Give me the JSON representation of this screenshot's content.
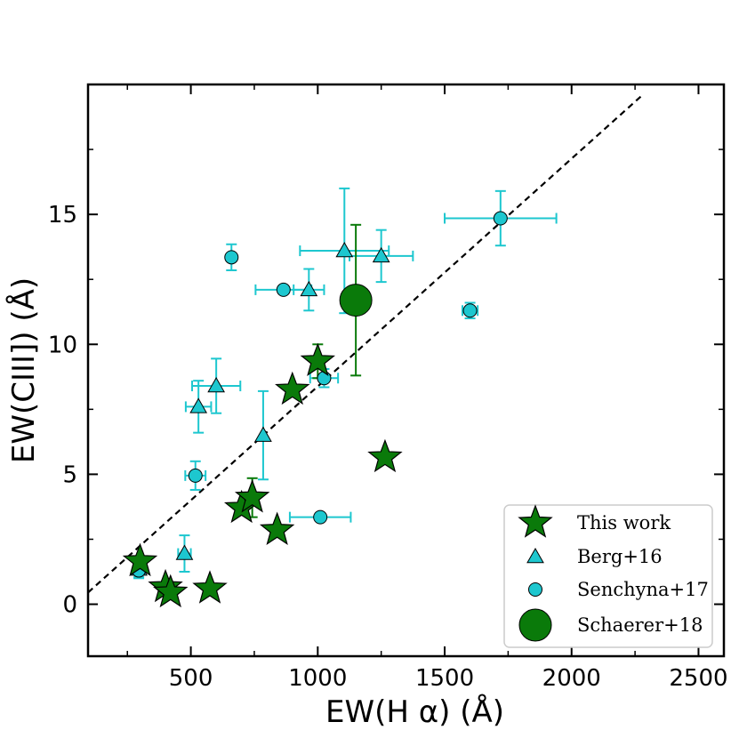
{
  "chart_data": {
    "type": "scatter",
    "title": "",
    "xlabel": "EW(H α) (Å)",
    "ylabel": "EW(CIII]) (Å)",
    "xlim": [
      95,
      2600
    ],
    "ylim": [
      -2,
      20
    ],
    "xticks": [
      500,
      1000,
      1500,
      2000,
      2500
    ],
    "yticks": [
      0,
      5,
      10,
      15
    ],
    "xtick_labels": [
      "500",
      "1000",
      "1500",
      "2000",
      "2500"
    ],
    "ytick_labels": [
      "0",
      "5",
      "10",
      "15"
    ],
    "reference_line": {
      "style": "dashed",
      "color": "#000000",
      "from": [
        95,
        0.45
      ],
      "to": [
        2280,
        19.6
      ]
    },
    "legend_position": "bottom-right",
    "series": [
      {
        "name": "This work",
        "marker": "star",
        "color": "#0a7a0a",
        "points": [
          {
            "x": 300,
            "y": 1.65
          },
          {
            "x": 400,
            "y": 0.65
          },
          {
            "x": 420,
            "y": 0.45
          },
          {
            "x": 575,
            "y": 0.6
          },
          {
            "x": 700,
            "y": 3.7
          },
          {
            "x": 742,
            "y": 4.1,
            "yerr": 0.75
          },
          {
            "x": 840,
            "y": 2.85
          },
          {
            "x": 900,
            "y": 8.25
          },
          {
            "x": 1000,
            "y": 9.35,
            "yerr": 0.65
          },
          {
            "x": 1265,
            "y": 5.65
          }
        ]
      },
      {
        "name": "Berg+16",
        "marker": "triangle",
        "color": "#1dc7cf",
        "errcolor": "#1dc7cf",
        "points": [
          {
            "x": 295,
            "y": 1.35,
            "yerr": 0.3,
            "xerr": 20
          },
          {
            "x": 475,
            "y": 1.95,
            "yerr": 0.7,
            "xerr": 25
          },
          {
            "x": 530,
            "y": 7.6,
            "yerr": 1.0,
            "xerr": 50
          },
          {
            "x": 600,
            "y": 8.4,
            "yerr": 1.05,
            "xerr": 95
          },
          {
            "x": 785,
            "y": 6.5,
            "yerr": 1.7
          },
          {
            "x": 965,
            "y": 12.1,
            "yerr": 0.8,
            "xerr": 60
          },
          {
            "x": 1105,
            "y": 13.6,
            "yerr": 2.4,
            "xerr": 175
          },
          {
            "x": 1250,
            "y": 13.4,
            "yerr": 1.0,
            "xerr": 125
          }
        ]
      },
      {
        "name": "Senchyna+17",
        "marker": "circle",
        "color": "#1dc7cf",
        "errcolor": "#1dc7cf",
        "points": [
          {
            "x": 295,
            "y": 1.3,
            "yerr": 0.3
          },
          {
            "x": 518,
            "y": 4.95,
            "yerr": 0.55,
            "xerr": 40
          },
          {
            "x": 660,
            "y": 13.35,
            "yerr": 0.5
          },
          {
            "x": 865,
            "y": 12.1,
            "xerr": 110
          },
          {
            "x": 1010,
            "y": 3.35,
            "xerr": 120
          },
          {
            "x": 1025,
            "y": 8.7,
            "yerr": 0.35,
            "xerr": 55
          },
          {
            "x": 1600,
            "y": 11.3,
            "yerr": 0.3,
            "xerr": 30
          },
          {
            "x": 1720,
            "y": 14.85,
            "yerr": 1.05,
            "xerr": 220
          }
        ]
      },
      {
        "name": "Schaerer+18",
        "marker": "circle-large",
        "color": "#0a7a0a",
        "errcolor": "#0a7a0a",
        "points": [
          {
            "x": 1150,
            "y": 11.7,
            "yerr": 2.9
          }
        ]
      }
    ]
  }
}
